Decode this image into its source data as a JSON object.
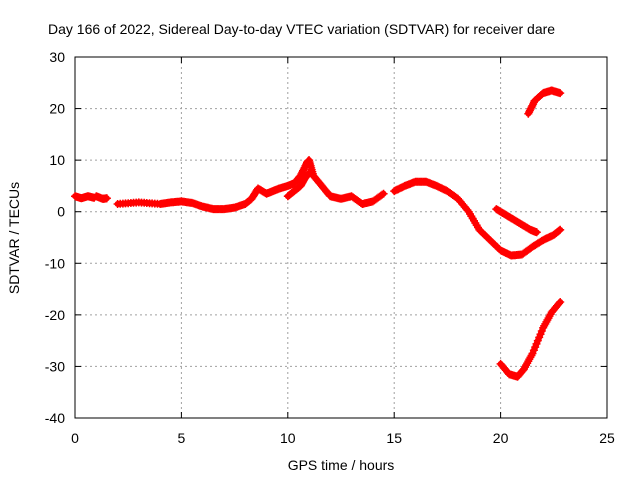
{
  "chart_data": {
    "type": "scatter",
    "title": "Day 166 of 2022, Sidereal Day-to-day VTEC variation (SDTVAR) for receiver dare",
    "xlabel": "GPS time / hours",
    "ylabel": "SDTVAR / TECUs",
    "xlim": [
      0,
      25
    ],
    "ylim": [
      -40,
      30
    ],
    "xticks": [
      "0",
      "5",
      "10",
      "15",
      "20",
      "25"
    ],
    "yticks": [
      "-40",
      "-30",
      "-20",
      "-10",
      "0",
      "10",
      "20",
      "30"
    ],
    "grid": true,
    "series": [
      {
        "name": "arc-1",
        "x": [
          0.0,
          0.3,
          0.6,
          0.9
        ],
        "y": [
          3.0,
          2.6,
          3.0,
          2.7
        ]
      },
      {
        "name": "arc-2",
        "x": [
          1.0,
          1.3,
          1.5
        ],
        "y": [
          3.0,
          2.5,
          2.6
        ]
      },
      {
        "name": "arc-3",
        "x": [
          2.0,
          3.0,
          4.0,
          4.5,
          5.0,
          5.5,
          6.0,
          6.5,
          7.0,
          7.5,
          8.0,
          8.3,
          8.6,
          9.0,
          9.3,
          9.6,
          10.0,
          10.3,
          10.6,
          10.9,
          11.0,
          11.2,
          11.5,
          11.8,
          12.0,
          12.5,
          13.0,
          13.5,
          14.0,
          14.5
        ],
        "y": [
          1.5,
          1.8,
          1.5,
          1.8,
          2.0,
          1.7,
          1.0,
          0.5,
          0.5,
          0.8,
          1.5,
          2.5,
          4.5,
          3.5,
          4.0,
          4.5,
          5.0,
          5.5,
          7.0,
          9.5,
          10.0,
          7.0,
          5.5,
          4.0,
          3.0,
          2.5,
          3.0,
          1.5,
          2.0,
          3.5
        ]
      },
      {
        "name": "arc-4",
        "x": [
          10.0,
          10.3,
          10.6,
          10.8,
          11.0
        ],
        "y": [
          3.0,
          4.0,
          5.0,
          6.5,
          7.5
        ]
      },
      {
        "name": "arc-5",
        "x": [
          15.0,
          15.5,
          16.0,
          16.5,
          17.0,
          17.5,
          18.0,
          18.5,
          19.0,
          19.5,
          20.0,
          20.5,
          21.0,
          21.5,
          22.0,
          22.5,
          22.8
        ],
        "y": [
          4.0,
          5.0,
          5.8,
          5.8,
          5.0,
          4.0,
          2.5,
          0.0,
          -3.5,
          -5.5,
          -7.5,
          -8.5,
          -8.3,
          -6.8,
          -5.5,
          -4.5,
          -3.5
        ]
      },
      {
        "name": "arc-6",
        "x": [
          19.8,
          20.2,
          20.6,
          21.0,
          21.4,
          21.7
        ],
        "y": [
          0.5,
          -0.5,
          -1.5,
          -2.5,
          -3.5,
          -4.0
        ]
      },
      {
        "name": "arc-7",
        "x": [
          21.3,
          21.6,
          22.0,
          22.4,
          22.8
        ],
        "y": [
          19.0,
          21.5,
          23.0,
          23.5,
          23.0
        ]
      },
      {
        "name": "arc-8",
        "x": [
          20.0,
          20.4,
          20.8,
          21.1,
          21.5,
          22.0,
          22.4,
          22.8
        ],
        "y": [
          -29.5,
          -31.5,
          -32.0,
          -30.5,
          -27.5,
          -22.5,
          -19.5,
          -17.5
        ]
      }
    ]
  }
}
